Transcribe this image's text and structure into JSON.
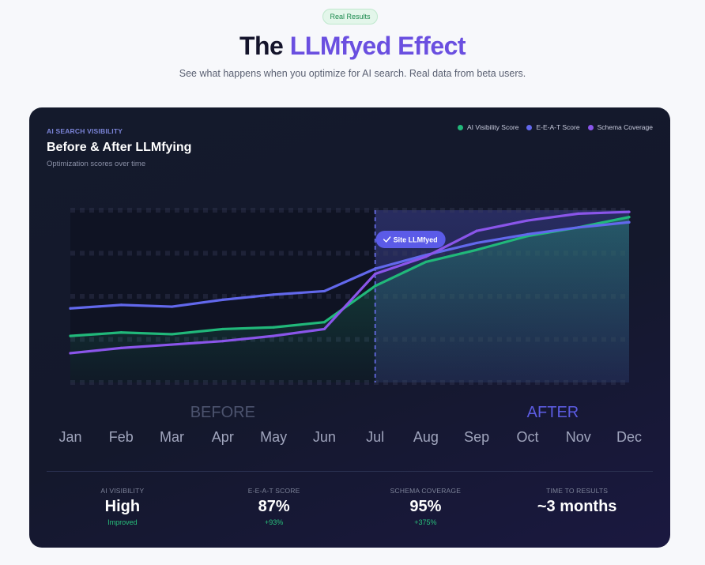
{
  "header": {
    "badge": "Real Results",
    "title_prefix": "The ",
    "title_accent": "LLMfyed Effect",
    "subtitle": "See what happens when you optimize for AI search. Real data from beta users."
  },
  "chart_data": {
    "type": "line",
    "eyebrow": "AI SEARCH VISIBILITY",
    "title": "Before & After LLMfying",
    "subtitle": "Optimization scores over time",
    "categories": [
      "Jan",
      "Feb",
      "Mar",
      "Apr",
      "May",
      "Jun",
      "Jul",
      "Aug",
      "Sep",
      "Oct",
      "Nov",
      "Dec"
    ],
    "ylim": [
      0,
      100
    ],
    "series": [
      {
        "name": "AI Visibility Score",
        "color": "#21b87a",
        "values": [
          27,
          29,
          28,
          31,
          32,
          35,
          56,
          70,
          77,
          85,
          90,
          96
        ]
      },
      {
        "name": "E-E-A-T Score",
        "color": "#6268ec",
        "values": [
          43,
          45,
          44,
          48,
          51,
          53,
          66,
          74,
          81,
          86,
          90,
          93
        ]
      },
      {
        "name": "Schema Coverage",
        "color": "#8a55ea",
        "values": [
          17,
          20,
          22,
          24,
          27,
          31,
          63,
          73,
          88,
          94,
          98,
          99
        ]
      }
    ],
    "marker": {
      "label": "Site LLMfyed",
      "at": "Jul"
    },
    "region_labels": {
      "before": "BEFORE",
      "after": "AFTER"
    }
  },
  "stats": [
    {
      "label": "AI VISIBILITY",
      "value": "High",
      "change": "Improved"
    },
    {
      "label": "E-E-A-T SCORE",
      "value": "87%",
      "change": "+93%"
    },
    {
      "label": "SCHEMA COVERAGE",
      "value": "95%",
      "change": "+375%"
    },
    {
      "label": "TIME TO RESULTS",
      "value": "~3 months",
      "change": ""
    }
  ]
}
